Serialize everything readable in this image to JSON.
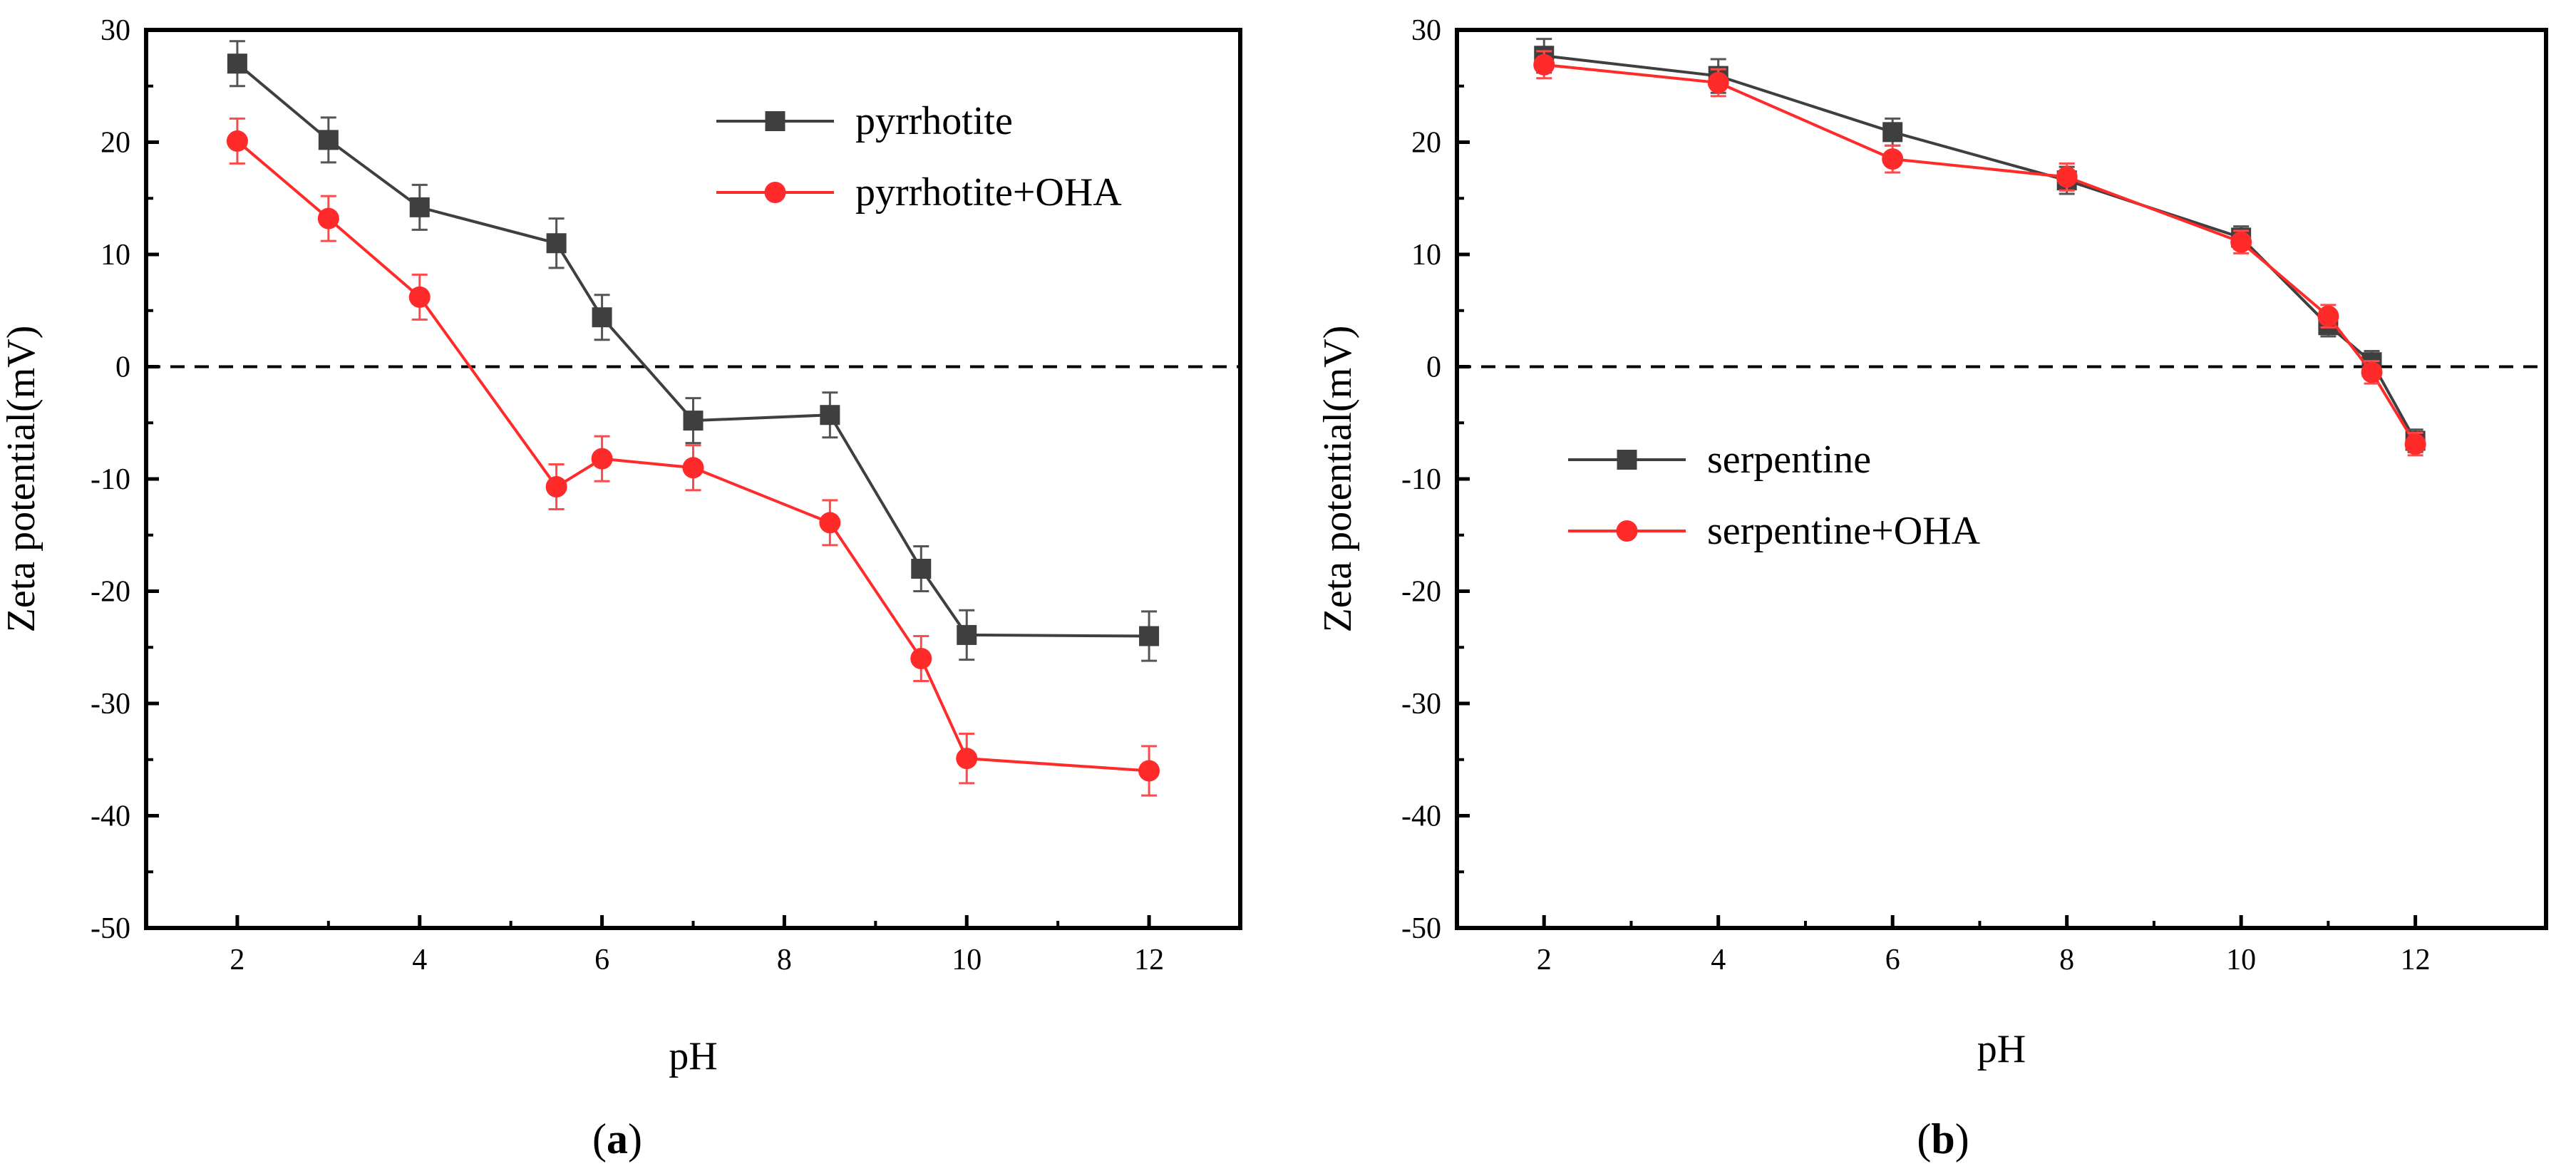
{
  "chart_data": [
    {
      "type": "line",
      "panel": "a",
      "xlabel": "pH",
      "ylabel": "Zeta potential(mV)",
      "xlim": [
        1,
        13
      ],
      "ylim": [
        -50,
        30
      ],
      "xticks": [
        2,
        4,
        6,
        8,
        10,
        12
      ],
      "yticks": [
        30,
        20,
        10,
        0,
        -10,
        -20,
        -30,
        -40,
        -50
      ],
      "reference_line": {
        "y": 0,
        "style": "dashed"
      },
      "legend_position": "top-right",
      "grid": false,
      "series": [
        {
          "name": "pyrrhotite",
          "color": "#3f3f3f",
          "marker": "square",
          "x": [
            2,
            3,
            4,
            5.5,
            6,
            7,
            8.5,
            9.5,
            10,
            12
          ],
          "y": [
            27,
            20.2,
            14.2,
            11,
            4.4,
            -4.8,
            -4.3,
            -18,
            -23.9,
            -24
          ],
          "error": [
            2,
            2,
            2,
            2.2,
            2,
            2,
            2,
            2,
            2.2,
            2.2
          ]
        },
        {
          "name": "pyrrhotite+OHA",
          "color": "#ff2a2a",
          "marker": "circle",
          "x": [
            2,
            3,
            4,
            5.5,
            6,
            7,
            8.5,
            9.5,
            10,
            12
          ],
          "y": [
            20.1,
            13.2,
            6.2,
            -10.7,
            -8.2,
            -9,
            -13.9,
            -26,
            -34.9,
            -36
          ],
          "error": [
            2,
            2,
            2,
            2,
            2,
            2,
            2,
            2,
            2.2,
            2.2
          ]
        }
      ]
    },
    {
      "type": "line",
      "panel": "b",
      "xlabel": "pH",
      "ylabel": "Zeta potential(mV)",
      "xlim": [
        1,
        13.5
      ],
      "ylim": [
        -50,
        30
      ],
      "xticks": [
        2,
        4,
        6,
        8,
        10,
        12
      ],
      "yticks": [
        30,
        20,
        10,
        0,
        -10,
        -20,
        -30,
        -40,
        -50
      ],
      "reference_line": {
        "y": 0,
        "style": "dashed"
      },
      "legend_position": "left-middle",
      "grid": false,
      "series": [
        {
          "name": "serpentine",
          "color": "#3f3f3f",
          "marker": "square",
          "x": [
            2,
            4,
            6,
            8,
            10,
            11,
            11.5,
            12
          ],
          "y": [
            27.7,
            25.9,
            20.9,
            16.6,
            11.5,
            3.7,
            0.4,
            -6.6
          ],
          "error": [
            1.5,
            1.5,
            1.2,
            1.2,
            1,
            1,
            1,
            1
          ]
        },
        {
          "name": "serpentine+OHA",
          "color": "#ff2a2a",
          "marker": "circle",
          "x": [
            2,
            4,
            6,
            8,
            10,
            11,
            11.5,
            12
          ],
          "y": [
            26.9,
            25.3,
            18.5,
            16.9,
            11.1,
            4.5,
            -0.5,
            -6.9
          ],
          "error": [
            1.2,
            1.2,
            1.2,
            1.2,
            1,
            1,
            1,
            1
          ]
        }
      ]
    }
  ],
  "panel_labels": [
    {
      "open": "(",
      "letter": "a",
      "close": ")"
    },
    {
      "open": "(",
      "letter": "b",
      "close": ")"
    }
  ]
}
